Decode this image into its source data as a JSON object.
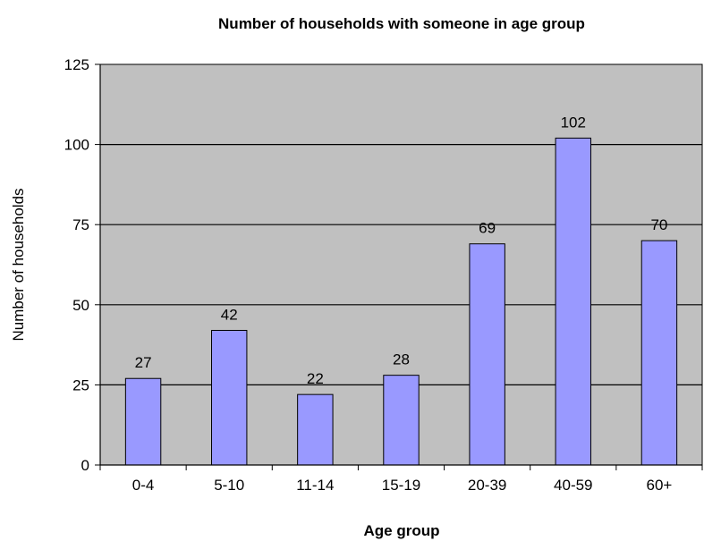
{
  "chart_data": {
    "type": "bar",
    "title": "Number of households with someone in age group",
    "xlabel": "Age group",
    "ylabel": "Number of households",
    "categories": [
      "0-4",
      "5-10",
      "11-14",
      "15-19",
      "20-39",
      "40-59",
      "60+"
    ],
    "values": [
      27,
      42,
      22,
      28,
      69,
      102,
      70
    ],
    "data_labels": [
      "27",
      "42",
      "22",
      "28",
      "69",
      "102",
      "70"
    ],
    "ylim": [
      0,
      125
    ],
    "yticks": [
      "0",
      "25",
      "50",
      "75",
      "100",
      "125"
    ],
    "grid": true,
    "legend": "none",
    "colors": {
      "bar_fill": "#9999FF",
      "bar_stroke": "#000000",
      "plot_background": "#C0C0C0",
      "gridline": "#000000"
    }
  }
}
